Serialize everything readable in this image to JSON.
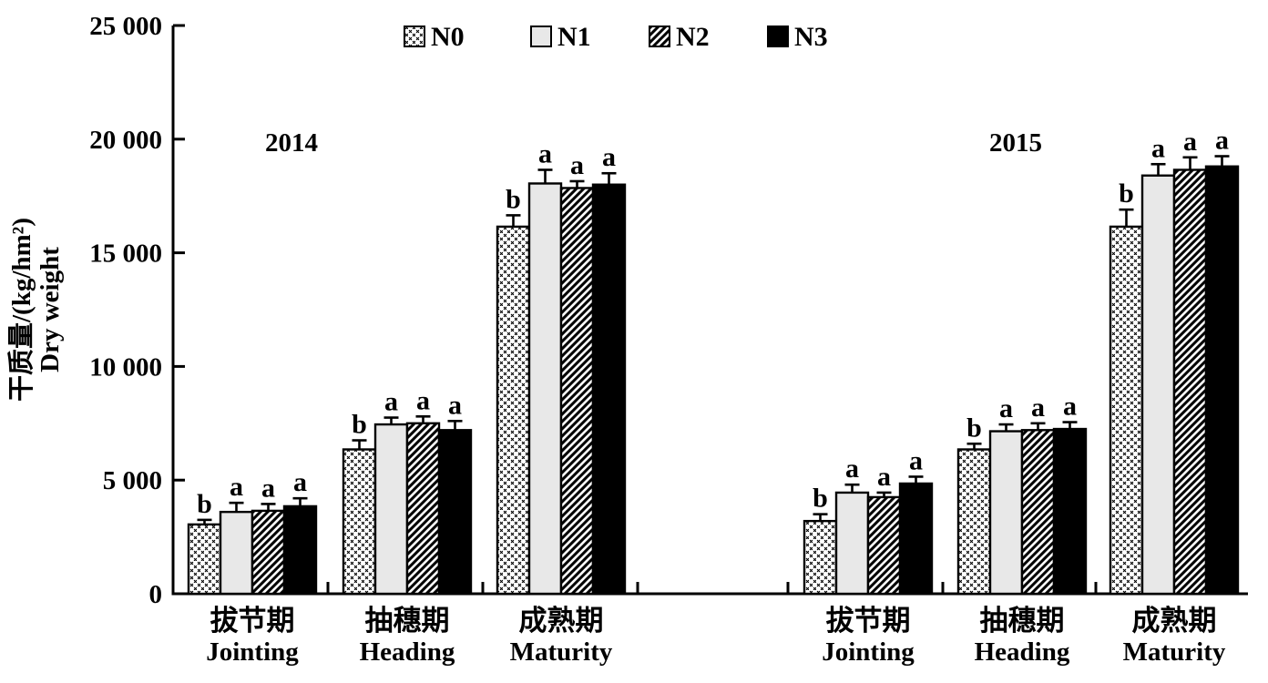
{
  "figure": {
    "background": "#ffffff",
    "ink": "#000000",
    "n1_fill": "#e8e8e8"
  },
  "chart_data": {
    "type": "bar",
    "title": "",
    "ylabel_cn": "干质量/(kg/hm²)",
    "ylabel_en": "Dry weight",
    "ylim": [
      0,
      25000
    ],
    "ytick_values": [
      0,
      5000,
      10000,
      15000,
      20000,
      25000
    ],
    "ytick_labels": [
      "0",
      "5 000",
      "10 000",
      "15 000",
      "20 000",
      "25 000"
    ],
    "grid": false,
    "legend_position": "top-center",
    "series": [
      {
        "name": "N0",
        "pattern": "cross-dot",
        "fill": "#ffffff"
      },
      {
        "name": "N1",
        "pattern": "solid",
        "fill": "#e8e8e8"
      },
      {
        "name": "N2",
        "pattern": "diagonal-hatch",
        "fill": "#ffffff"
      },
      {
        "name": "N3",
        "pattern": "solid",
        "fill": "#000000"
      }
    ],
    "years": [
      {
        "label": "2014",
        "groups": [
          {
            "label_cn": "拔节期",
            "label_en": "Jointing",
            "values": [
              3050,
              3600,
              3650,
              3850
            ],
            "errors": [
              200,
              400,
              300,
              350
            ],
            "letters": [
              "b",
              "a",
              "a",
              "a"
            ]
          },
          {
            "label_cn": "抽穗期",
            "label_en": "Heading",
            "values": [
              6350,
              7450,
              7500,
              7200
            ],
            "errors": [
              400,
              300,
              300,
              400
            ],
            "letters": [
              "b",
              "a",
              "a",
              "a"
            ]
          },
          {
            "label_cn": "成熟期",
            "label_en": "Maturity",
            "values": [
              16150,
              18050,
              17850,
              18000
            ],
            "errors": [
              500,
              600,
              300,
              500
            ],
            "letters": [
              "b",
              "a",
              "a",
              "a"
            ]
          }
        ]
      },
      {
        "label": "2015",
        "groups": [
          {
            "label_cn": "拔节期",
            "label_en": "Jointing",
            "values": [
              3200,
              4450,
              4250,
              4850
            ],
            "errors": [
              300,
              350,
              200,
              300
            ],
            "letters": [
              "b",
              "a",
              "a",
              "a"
            ]
          },
          {
            "label_cn": "抽穗期",
            "label_en": "Heading",
            "values": [
              6350,
              7150,
              7200,
              7250
            ],
            "errors": [
              250,
              300,
              300,
              300
            ],
            "letters": [
              "b",
              "a",
              "a",
              "a"
            ]
          },
          {
            "label_cn": "成熟期",
            "label_en": "Maturity",
            "values": [
              16150,
              18400,
              18650,
              18800
            ],
            "errors": [
              750,
              500,
              550,
              450
            ],
            "letters": [
              "b",
              "a",
              "a",
              "a"
            ]
          }
        ]
      }
    ]
  }
}
